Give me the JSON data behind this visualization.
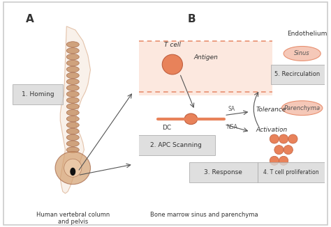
{
  "fig_width": 4.74,
  "fig_height": 3.26,
  "bg_color": "#ffffff",
  "border_color": "#cccccc",
  "panel_A_label": "A",
  "panel_B_label": "B",
  "caption_A": "Human vertebral column\nand pelvis",
  "caption_B": "Bone marrow sinus and parenchyma",
  "sinus_fill": "#f5c8b8",
  "sinus_border": "#e89070",
  "parenchyma_fill": "#f5c8b8",
  "parenchyma_border": "#e89070",
  "cell_color": "#e8825a",
  "dc_body_color": "#e8825a",
  "proliferation_color": "#e8825a",
  "label_box_color": "#d8d8d8",
  "label_text_color": "#333333",
  "arrow_color": "#555555",
  "dashed_line_color": "#e89070",
  "sinus_region_fill": "#fce8df",
  "text_labels": {
    "t_cell": "T cell",
    "antigen": "Antigen",
    "dc": "DC",
    "sa": "SA",
    "nsa": "NSA",
    "tolerance": "Tolerance",
    "activation": "Activation",
    "endothelium": "Endothelium",
    "sinus": "Sinus",
    "parenchyma": "Parenchyma",
    "homing": "1. Homing",
    "apc_scanning": "2. APC Scanning",
    "response": "3. Response",
    "proliferation": "4. T cell proliferation",
    "recirculation": "5. Recirculation"
  }
}
